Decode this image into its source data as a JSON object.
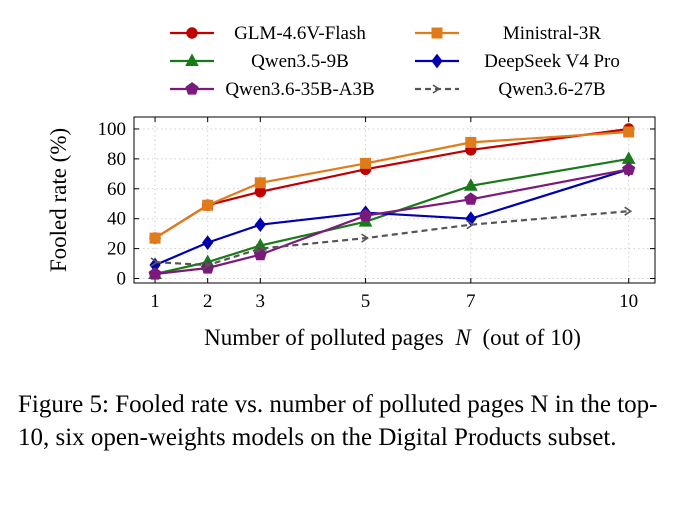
{
  "chart_data": {
    "type": "line",
    "x": [
      1,
      2,
      3,
      5,
      7,
      10
    ],
    "xticks": [
      "1",
      "2",
      "3",
      "5",
      "7",
      "10"
    ],
    "yticks": [
      "0",
      "20",
      "40",
      "60",
      "80",
      "100"
    ],
    "xlabel_prefix": "Number of polluted pages",
    "xlabel_var": "N",
    "xlabel_suffix": "(out of 10)",
    "ylabel": "Fooled rate (%)",
    "xlim": [
      0.6,
      10.5
    ],
    "ylim": [
      -3,
      108
    ],
    "grid": true,
    "legend_position": "top",
    "series": [
      {
        "name": "GLM-4.6V-Flash",
        "color": "#c00000",
        "marker": "circle",
        "dash": false,
        "values": [
          27,
          49,
          58,
          73,
          86,
          100
        ]
      },
      {
        "name": "Ministral-3R",
        "color": "#e07b1a",
        "marker": "square",
        "dash": false,
        "values": [
          27,
          49,
          64,
          77,
          91,
          98
        ]
      },
      {
        "name": "Qwen3.5-9B",
        "color": "#1a7a1a",
        "marker": "triangle",
        "dash": false,
        "values": [
          3,
          11,
          22,
          38,
          62,
          80
        ]
      },
      {
        "name": "DeepSeek V4 Pro",
        "color": "#0000b0",
        "marker": "diamond",
        "dash": false,
        "values": [
          9,
          24,
          36,
          44,
          40,
          73
        ]
      },
      {
        "name": "Qwen3.6-35B-A3B",
        "color": "#7b1a7b",
        "marker": "pentagon",
        "dash": false,
        "values": [
          3,
          7,
          16,
          42,
          53,
          73
        ]
      },
      {
        "name": "Qwen3.6-27B",
        "color": "#555555",
        "marker": "arrow",
        "dash": true,
        "values": [
          11,
          9,
          20,
          27,
          36,
          45
        ]
      }
    ]
  },
  "caption": "Figure 5: Fooled rate vs. number of polluted pages N in the top-10, six open-weights models on the Digital Products subset."
}
